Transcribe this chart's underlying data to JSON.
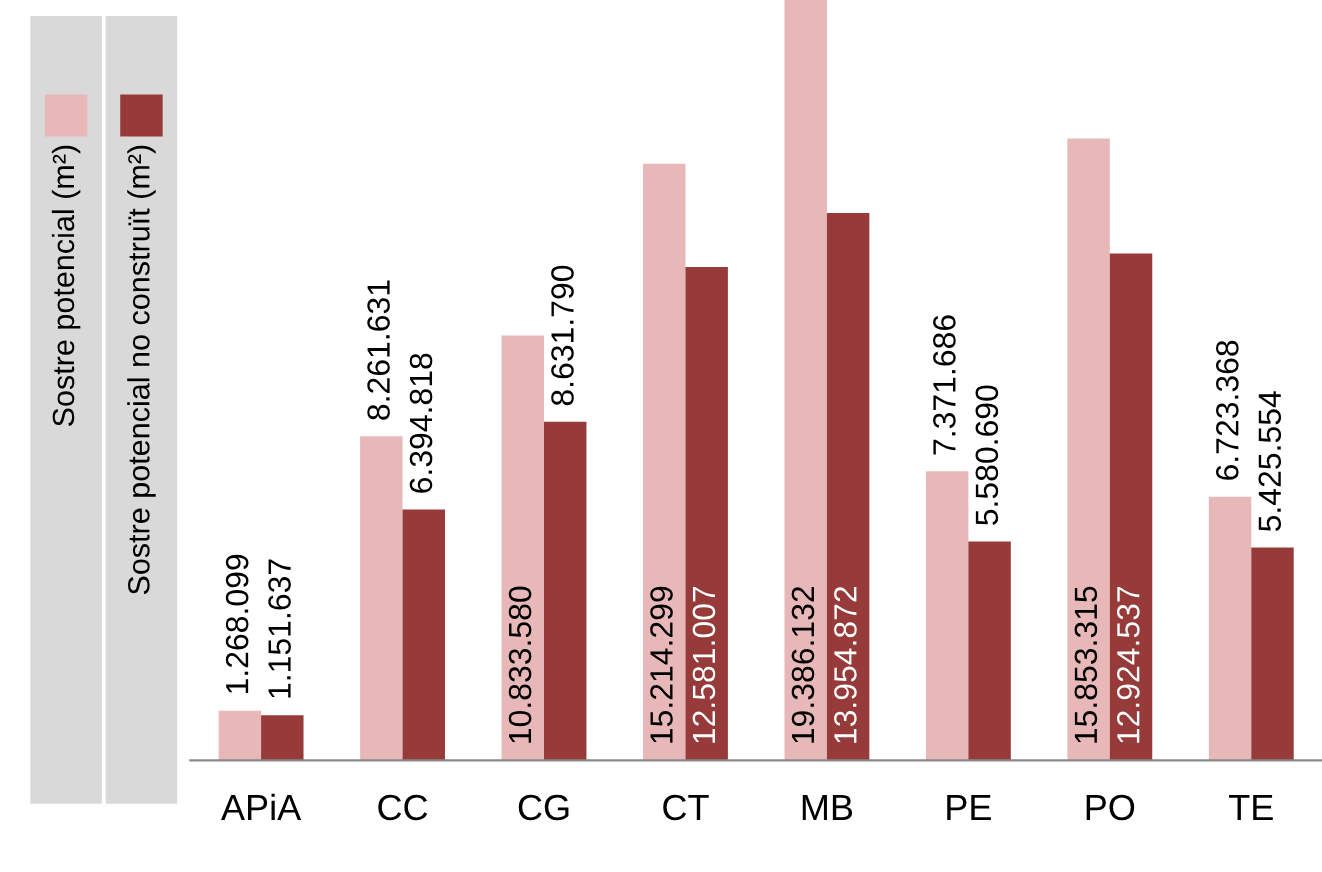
{
  "chart_data": {
    "type": "bar",
    "categories": [
      "APiA",
      "CC",
      "CG",
      "CT",
      "MB",
      "PE",
      "PO",
      "TE"
    ],
    "legend": "left",
    "series": [
      {
        "name": "Sostre potencial (m²)",
        "color": "#e8b8b8",
        "values": [
          1268099,
          8261631,
          10833580,
          15214299,
          19386132,
          7371686,
          15853315,
          6723368
        ],
        "value_labels": [
          "1.268.099",
          "8.261.631",
          "10.833.580",
          "15.214.299",
          "19.386.132",
          "7.371.686",
          "15.853.315",
          "6.723.368"
        ]
      },
      {
        "name": "Sostre potencial no construït (m²)",
        "color": "#963a3a",
        "values": [
          1151637,
          6394818,
          8631790,
          12581007,
          13954872,
          5580690,
          12924537,
          5425554
        ],
        "value_labels": [
          "1.151.637",
          "6.394.818",
          "8.631.790",
          "12.581.007",
          "13.954.872",
          "5.580.690",
          "12.924.537",
          "5.425.554"
        ]
      }
    ]
  }
}
